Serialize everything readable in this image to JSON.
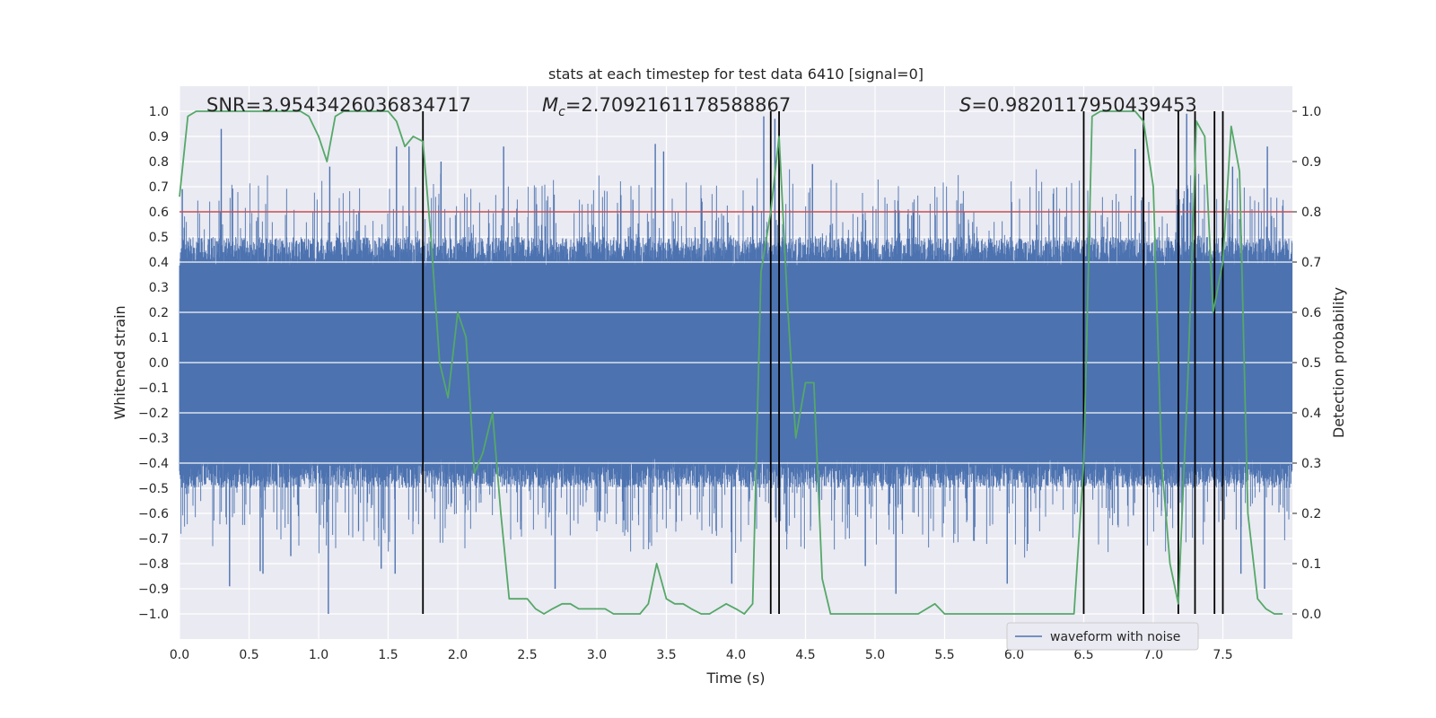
{
  "chart_data": {
    "type": "line",
    "title": "stats at each timestep for test data 6410 [signal=0]",
    "xlabel": "Time (s)",
    "ylabel": "Whitened strain",
    "ylabel_right": "Detection probability",
    "xlim": [
      0.0,
      8.0
    ],
    "ylim": [
      -1.1,
      1.1
    ],
    "ylim_right": [
      -0.05,
      1.05
    ],
    "x_ticks": [
      "0.0",
      "0.5",
      "1.0",
      "1.5",
      "2.0",
      "2.5",
      "3.0",
      "3.5",
      "4.0",
      "4.5",
      "5.0",
      "5.5",
      "6.0",
      "6.5",
      "7.0",
      "7.5"
    ],
    "y_ticks": [
      "−1.0",
      "−0.9",
      "−0.8",
      "−0.7",
      "−0.6",
      "−0.5",
      "−0.4",
      "−0.3",
      "−0.2",
      "−0.1",
      "0.0",
      "0.1",
      "0.2",
      "0.3",
      "0.4",
      "0.5",
      "0.6",
      "0.7",
      "0.8",
      "0.9",
      "1.0"
    ],
    "y_ticks_right": [
      "0.0",
      "0.1",
      "0.2",
      "0.3",
      "0.4",
      "0.5",
      "0.6",
      "0.7",
      "0.8",
      "0.9",
      "1.0"
    ],
    "grid": true,
    "annotations": {
      "snr": "SNR=3.9543426036834717",
      "mc_symbol": "M",
      "mc_sub": "c",
      "mc_value": "=2.7092161178588867",
      "s_symbol": "S",
      "s_value": "=0.9820117950439453"
    },
    "legend": {
      "label": "waveform with noise",
      "position": "bottom-right"
    },
    "threshold": {
      "value": 0.8,
      "axis": "right",
      "color": "#c44e52"
    },
    "detection_lines": [
      1.75,
      4.25,
      4.31,
      6.5,
      6.93,
      7.18,
      7.3,
      7.44,
      7.5
    ],
    "series": [
      {
        "name": "waveform with noise",
        "color": "#4c72b0",
        "axis": "left",
        "samples": 8192,
        "envelope_base": 0.38,
        "spikes": [
          {
            "x": 0.02,
            "value": 0.69
          },
          {
            "x": 0.3,
            "value": 0.93
          },
          {
            "x": 0.36,
            "value": -0.89
          },
          {
            "x": 0.58,
            "value": -0.83
          },
          {
            "x": 0.6,
            "value": -0.84
          },
          {
            "x": 0.8,
            "value": -0.77
          },
          {
            "x": 1.07,
            "value": -1.0
          },
          {
            "x": 1.08,
            "value": 0.78
          },
          {
            "x": 1.45,
            "value": -0.82
          },
          {
            "x": 1.55,
            "value": -0.84
          },
          {
            "x": 1.56,
            "value": 0.86
          },
          {
            "x": 1.65,
            "value": 0.86
          },
          {
            "x": 1.88,
            "value": 0.8
          },
          {
            "x": 2.33,
            "value": 0.86
          },
          {
            "x": 2.7,
            "value": -0.9
          },
          {
            "x": 3.42,
            "value": 0.87
          },
          {
            "x": 3.48,
            "value": 0.84
          },
          {
            "x": 3.97,
            "value": -0.88
          },
          {
            "x": 4.2,
            "value": 0.98
          },
          {
            "x": 4.28,
            "value": 0.97
          },
          {
            "x": 4.55,
            "value": 0.79
          },
          {
            "x": 4.93,
            "value": -0.81
          },
          {
            "x": 5.15,
            "value": -0.92
          },
          {
            "x": 5.95,
            "value": -0.88
          },
          {
            "x": 6.87,
            "value": 0.85
          },
          {
            "x": 7.24,
            "value": 0.99
          },
          {
            "x": 7.63,
            "value": -0.84
          },
          {
            "x": 7.82,
            "value": 0.86
          },
          {
            "x": 7.8,
            "value": -0.9
          },
          {
            "x": 7.57,
            "value": 0.78
          }
        ]
      },
      {
        "name": "detection probability",
        "color": "#55a868",
        "axis": "right",
        "x": [
          0.0,
          0.06,
          0.12,
          0.18,
          0.25,
          0.31,
          0.37,
          0.43,
          0.5,
          0.56,
          0.62,
          0.68,
          0.75,
          0.81,
          0.87,
          0.93,
          1.0,
          1.06,
          1.12,
          1.18,
          1.25,
          1.31,
          1.37,
          1.43,
          1.5,
          1.56,
          1.62,
          1.68,
          1.75,
          1.81,
          1.87,
          1.93,
          2.0,
          2.06,
          2.12,
          2.18,
          2.25,
          2.31,
          2.37,
          2.43,
          2.5,
          2.56,
          2.62,
          2.68,
          2.75,
          2.81,
          2.87,
          2.93,
          3.0,
          3.06,
          3.12,
          3.18,
          3.25,
          3.31,
          3.37,
          3.43,
          3.5,
          3.56,
          3.62,
          3.68,
          3.75,
          3.81,
          3.87,
          3.93,
          4.0,
          4.06,
          4.12,
          4.18,
          4.25,
          4.31,
          4.37,
          4.43,
          4.5,
          4.56,
          4.62,
          4.68,
          4.75,
          4.81,
          4.87,
          4.93,
          5.0,
          5.06,
          5.12,
          5.18,
          5.25,
          5.31,
          5.37,
          5.43,
          5.5,
          5.56,
          5.62,
          5.68,
          5.75,
          5.81,
          5.87,
          5.93,
          6.0,
          6.06,
          6.12,
          6.18,
          6.25,
          6.31,
          6.37,
          6.43,
          6.5,
          6.56,
          6.62,
          6.68,
          6.75,
          6.81,
          6.87,
          6.93,
          7.0,
          7.06,
          7.12,
          7.18,
          7.25,
          7.31,
          7.37,
          7.43,
          7.5,
          7.56,
          7.62,
          7.68,
          7.75,
          7.81,
          7.87,
          7.93
        ],
        "values": [
          0.83,
          0.99,
          1.0,
          1.0,
          1.0,
          1.0,
          1.0,
          1.0,
          1.0,
          1.0,
          1.0,
          1.0,
          1.0,
          1.0,
          1.0,
          0.99,
          0.95,
          0.9,
          0.99,
          1.0,
          1.0,
          1.0,
          1.0,
          1.0,
          1.0,
          0.98,
          0.93,
          0.95,
          0.94,
          0.74,
          0.5,
          0.43,
          0.6,
          0.55,
          0.28,
          0.32,
          0.4,
          0.2,
          0.03,
          0.03,
          0.03,
          0.01,
          0.0,
          0.01,
          0.02,
          0.02,
          0.01,
          0.01,
          0.01,
          0.01,
          0.0,
          0.0,
          0.0,
          0.0,
          0.02,
          0.1,
          0.03,
          0.02,
          0.02,
          0.01,
          0.0,
          0.0,
          0.01,
          0.02,
          0.01,
          0.0,
          0.02,
          0.68,
          0.8,
          0.95,
          0.62,
          0.35,
          0.46,
          0.46,
          0.07,
          0.0,
          0.0,
          0.0,
          0.0,
          0.0,
          0.0,
          0.0,
          0.0,
          0.0,
          0.0,
          0.0,
          0.01,
          0.02,
          0.0,
          0.0,
          0.0,
          0.0,
          0.0,
          0.0,
          0.0,
          0.0,
          0.0,
          0.0,
          0.0,
          0.0,
          0.0,
          0.0,
          0.0,
          0.0,
          0.3,
          0.99,
          1.0,
          1.0,
          1.0,
          1.0,
          1.0,
          0.98,
          0.85,
          0.3,
          0.1,
          0.02,
          0.48,
          0.98,
          0.95,
          0.6,
          0.7,
          0.97,
          0.88,
          0.2,
          0.03,
          0.01,
          0.0,
          0.0
        ]
      }
    ]
  }
}
